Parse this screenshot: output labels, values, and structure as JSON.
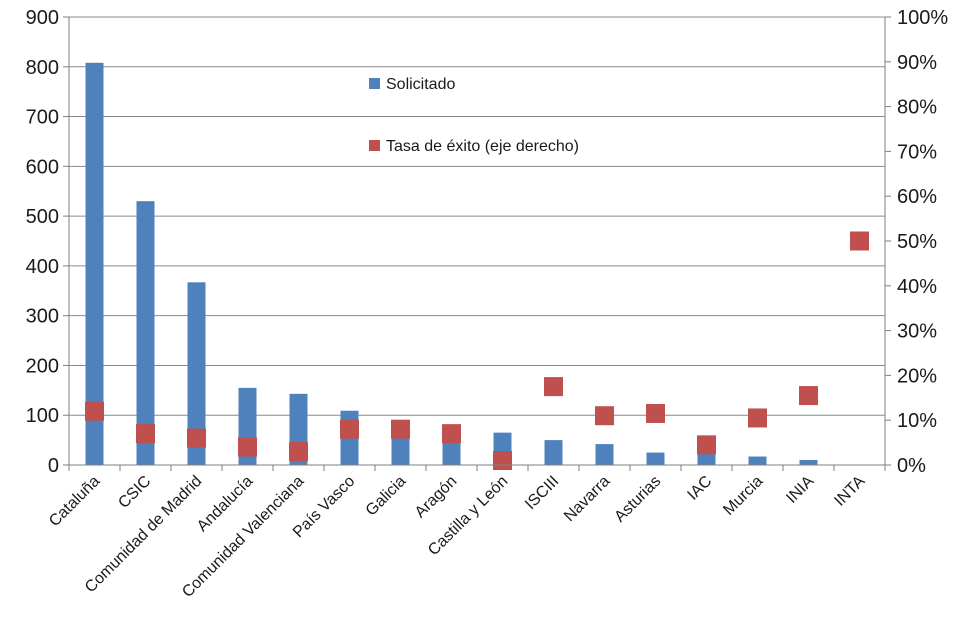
{
  "chart_data": {
    "type": "bar",
    "categories": [
      "Cataluña",
      "CSIC",
      "Comunidad de Madrid",
      "Andalucía",
      "Comunidad Valenciana",
      "País Vasco",
      "Galicia",
      "Aragón",
      "Castilla y León",
      "ISCIII",
      "Navarra",
      "Asturias",
      "IAC",
      "Murcia",
      "INIA",
      "INTA"
    ],
    "series": [
      {
        "name": "Solicitado",
        "type": "bar",
        "axis": "left",
        "color": "#4f81bd",
        "values": [
          808,
          530,
          367,
          155,
          143,
          109,
          87,
          80,
          65,
          50,
          42,
          25,
          25,
          17,
          10,
          0
        ]
      },
      {
        "name": "Tasa de éxito (eje derecho)",
        "type": "scatter",
        "axis": "right",
        "marker": "square",
        "color": "#c0504d",
        "values": [
          0.12,
          0.07,
          0.06,
          0.04,
          0.03,
          0.08,
          0.08,
          0.07,
          0.01,
          0.175,
          0.11,
          0.115,
          0.045,
          0.105,
          0.155,
          0.5
        ]
      }
    ],
    "y_left": {
      "ylim": [
        0,
        900
      ],
      "ticks": [
        "0",
        "100",
        "200",
        "300",
        "400",
        "500",
        "600",
        "700",
        "800",
        "900"
      ]
    },
    "y_right": {
      "ylim": [
        0,
        1
      ],
      "ticks": [
        "0%",
        "10%",
        "20%",
        "30%",
        "40%",
        "50%",
        "60%",
        "70%",
        "80%",
        "90%",
        "100%"
      ]
    },
    "grid": true,
    "legend": {
      "position": "top-center-inside",
      "entries": [
        "Solicitado",
        "Tasa de éxito (eje derecho)"
      ]
    }
  }
}
